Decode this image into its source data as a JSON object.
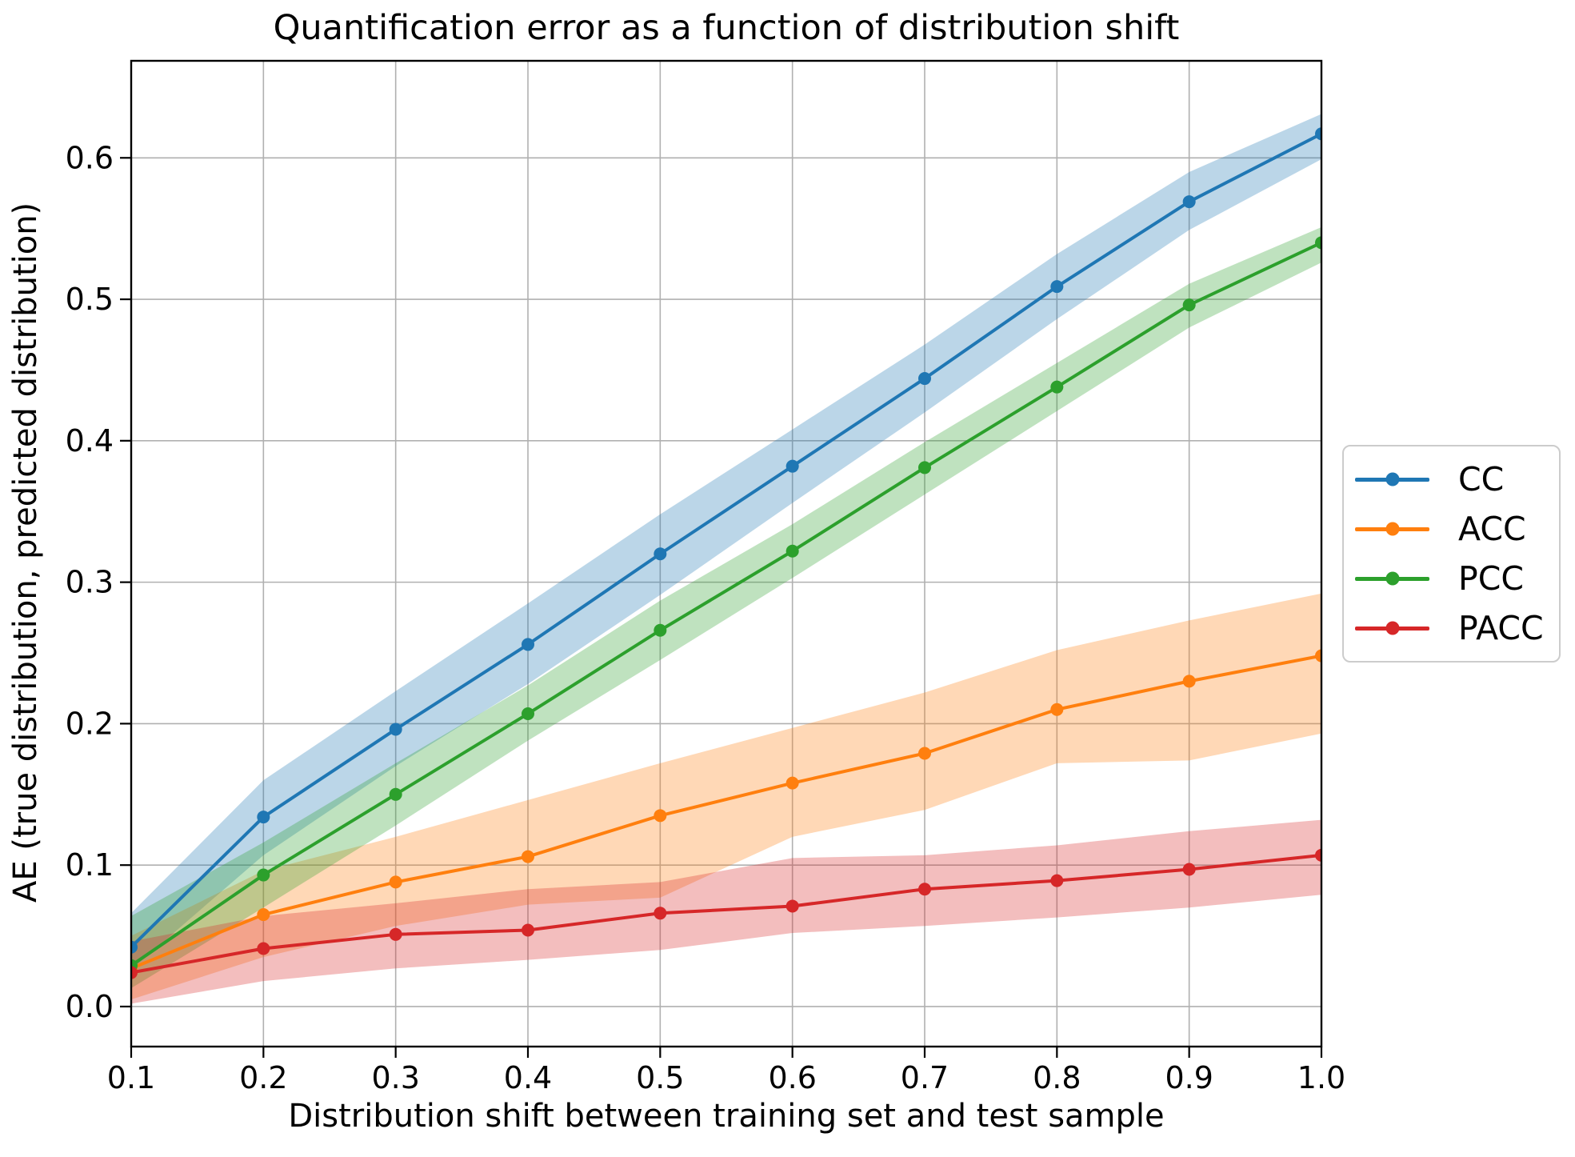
{
  "chart_data": {
    "type": "line",
    "title": "Quantification error as a function of distribution shift",
    "xlabel": "Distribution shift between training set and test sample",
    "ylabel": "AE (true distribution, predicted distribution)",
    "x": [
      0.1,
      0.2,
      0.3,
      0.4,
      0.5,
      0.6,
      0.7,
      0.8,
      0.9,
      1.0
    ],
    "x_tick_labels": [
      "0.1",
      "0.2",
      "0.3",
      "0.4",
      "0.5",
      "0.6",
      "0.7",
      "0.8",
      "0.9",
      "1.0"
    ],
    "y_tick_labels": [
      "0.0",
      "0.1",
      "0.2",
      "0.3",
      "0.4",
      "0.5",
      "0.6"
    ],
    "xlim": [
      0.1,
      1.0
    ],
    "ylim": [
      -0.0283,
      0.6686
    ],
    "grid": true,
    "grid_color": "#b0b0b0",
    "legend_position": "center-right-outside",
    "series": [
      {
        "name": "CC",
        "color": "#1f77b4",
        "values": [
          0.042,
          0.134,
          0.196,
          0.256,
          0.32,
          0.382,
          0.444,
          0.509,
          0.569,
          0.617
        ],
        "band_lower": [
          0.026,
          0.107,
          0.17,
          0.228,
          0.291,
          0.356,
          0.42,
          0.486,
          0.549,
          0.599
        ],
        "band_upper": [
          0.066,
          0.16,
          0.223,
          0.285,
          0.348,
          0.408,
          0.468,
          0.532,
          0.59,
          0.631
        ]
      },
      {
        "name": "ACC",
        "color": "#ff7f0e",
        "values": [
          0.027,
          0.065,
          0.088,
          0.106,
          0.135,
          0.158,
          0.179,
          0.21,
          0.23,
          0.248
        ],
        "band_lower": [
          0.005,
          0.035,
          0.057,
          0.072,
          0.077,
          0.12,
          0.139,
          0.172,
          0.174,
          0.193
        ],
        "band_upper": [
          0.05,
          0.096,
          0.12,
          0.146,
          0.172,
          0.197,
          0.222,
          0.252,
          0.273,
          0.292
        ]
      },
      {
        "name": "PCC",
        "color": "#2ca02c",
        "values": [
          0.029,
          0.093,
          0.15,
          0.207,
          0.266,
          0.322,
          0.381,
          0.438,
          0.496,
          0.54
        ],
        "band_lower": [
          0.013,
          0.07,
          0.128,
          0.188,
          0.245,
          0.303,
          0.362,
          0.421,
          0.48,
          0.526
        ],
        "band_upper": [
          0.064,
          0.116,
          0.172,
          0.227,
          0.287,
          0.341,
          0.399,
          0.455,
          0.511,
          0.551
        ]
      },
      {
        "name": "PACC",
        "color": "#d62728",
        "values": [
          0.024,
          0.041,
          0.051,
          0.054,
          0.066,
          0.071,
          0.083,
          0.089,
          0.097,
          0.107
        ],
        "band_lower": [
          0.002,
          0.018,
          0.027,
          0.033,
          0.04,
          0.052,
          0.057,
          0.063,
          0.07,
          0.079
        ],
        "band_upper": [
          0.046,
          0.064,
          0.073,
          0.083,
          0.088,
          0.105,
          0.107,
          0.114,
          0.124,
          0.132
        ]
      }
    ]
  }
}
